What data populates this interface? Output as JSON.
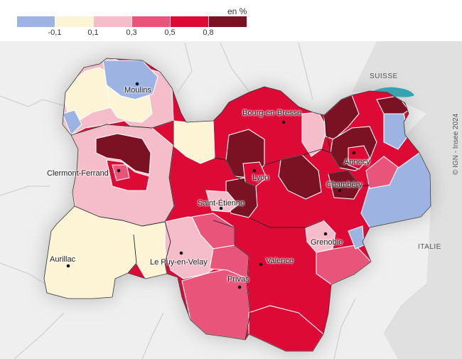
{
  "legend": {
    "unit": "en %",
    "classes": [
      {
        "color": "#9db4e3",
        "tick": "-0,1"
      },
      {
        "color": "#fcf4d4",
        "tick": "0,1"
      },
      {
        "color": "#f5bdc9",
        "tick": "0,3"
      },
      {
        "color": "#e9557a",
        "tick": "0,5"
      },
      {
        "color": "#dd0a35",
        "tick": "0,8"
      },
      {
        "color": "#7b1223",
        "tick": ""
      }
    ]
  },
  "cities": {
    "moulins": "Moulins",
    "bourg": "Bourg-en-Bresse",
    "clermont": "Clermont-Ferrand",
    "lyon": "Lyon",
    "annecy": "Annecy",
    "chambery": "Chambéry",
    "saint_etienne": "Saint-Étienne",
    "grenoble": "Grenoble",
    "aurillac": "Aurillac",
    "le_puy": "Le Puy-en-Velay",
    "valence": "Valence",
    "privas": "Privas"
  },
  "countries": {
    "suisse": "SUISSE",
    "italie": "ITALIE"
  },
  "credit": "© IGN - Insee 2024"
}
